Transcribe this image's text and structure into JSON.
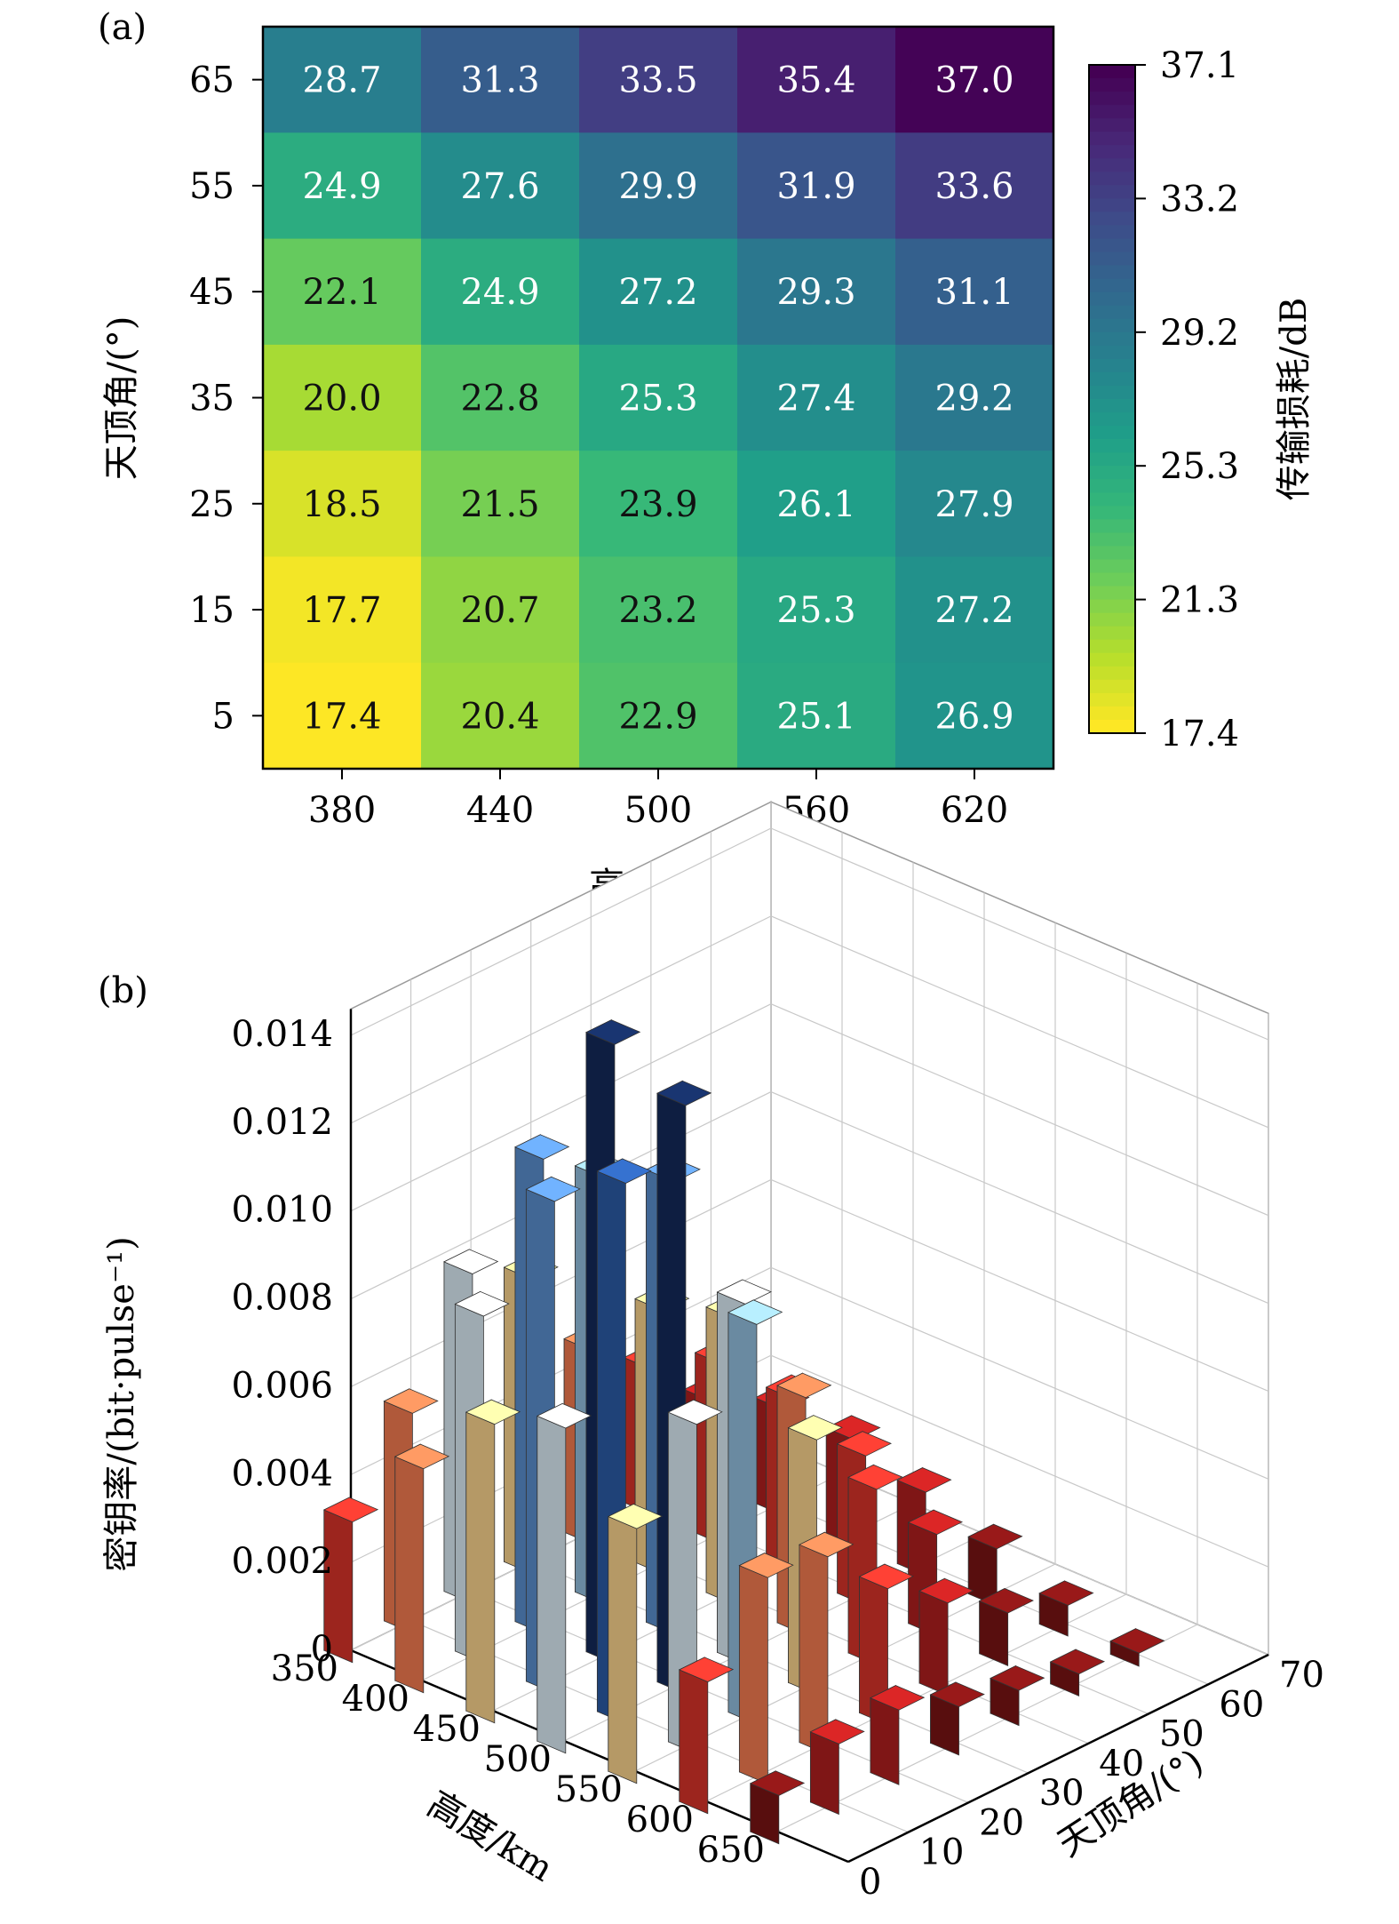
{
  "chart_data": [
    {
      "type": "heatmap",
      "panel_label": "(a)",
      "xlabel": "高度/km",
      "ylabel": "天顶角/(°)",
      "x_ticks": [
        "380",
        "440",
        "500",
        "560",
        "620"
      ],
      "y_ticks": [
        "65",
        "55",
        "45",
        "35",
        "25",
        "15",
        "5"
      ],
      "values": [
        [
          28.7,
          31.3,
          33.5,
          35.4,
          37.0
        ],
        [
          24.9,
          27.6,
          29.9,
          31.9,
          33.6
        ],
        [
          22.1,
          24.9,
          27.2,
          29.3,
          31.1
        ],
        [
          20.0,
          22.8,
          25.3,
          27.4,
          29.2
        ],
        [
          18.5,
          21.5,
          23.9,
          26.1,
          27.9
        ],
        [
          17.7,
          20.7,
          23.2,
          25.3,
          27.2
        ],
        [
          17.4,
          20.4,
          22.9,
          25.1,
          26.9
        ]
      ],
      "value_labels": [
        [
          "28.7",
          "31.3",
          "33.5",
          "35.4",
          "37.0"
        ],
        [
          "24.9",
          "27.6",
          "29.9",
          "31.9",
          "33.6"
        ],
        [
          "22.1",
          "24.9",
          "27.2",
          "29.3",
          "31.1"
        ],
        [
          "20.0",
          "22.8",
          "25.3",
          "27.4",
          "29.2"
        ],
        [
          "18.5",
          "21.5",
          "23.9",
          "26.1",
          "27.9"
        ],
        [
          "17.7",
          "20.7",
          "23.2",
          "25.3",
          "27.2"
        ],
        [
          "17.4",
          "20.4",
          "22.9",
          "25.1",
          "26.9"
        ]
      ],
      "colorbar": {
        "label": "传输损耗/dB",
        "min": 17.4,
        "max": 37.1,
        "ticks": [
          "37.1",
          "33.2",
          "29.2",
          "25.3",
          "21.3",
          "17.4"
        ],
        "colormap": "viridis"
      }
    },
    {
      "type": "bar3d",
      "panel_label": "(b)",
      "zlabel": "密钥率/(bit·pulse⁻¹)",
      "xlabel": "高度/km",
      "ylabel": "天顶角/(°)",
      "x_ticks": [
        "350",
        "400",
        "450",
        "500",
        "550",
        "600",
        "650"
      ],
      "y_ticks": [
        "0",
        "10",
        "20",
        "30",
        "40",
        "50",
        "60",
        "70"
      ],
      "z_ticks": [
        "0",
        "0.002",
        "0.004",
        "0.006",
        "0.008",
        "0.010",
        "0.012",
        "0.014"
      ],
      "zlim": [
        0,
        0.014
      ],
      "heights": "x 350–650 km step 50; y 0–60° step 10",
      "x": [
        350,
        400,
        450,
        500,
        550,
        600,
        650
      ],
      "y": [
        0,
        10,
        20,
        30,
        40,
        50,
        60
      ],
      "values": [
        [
          0.0032,
          0.0051,
          0.0068,
          0.0074,
          0.0058,
          0.003,
          0.0011
        ],
        [
          0.005,
          0.0079,
          0.0112,
          0.0123,
          0.0075,
          0.0047,
          0.0016
        ],
        [
          0.0075,
          0.0108,
          0.0141,
          0.0134,
          0.0091,
          0.0045,
          0.0017
        ],
        [
          0.0067,
          0.0097,
          0.0103,
          0.0082,
          0.0058,
          0.0031,
          0.0011
        ],
        [
          0.0044,
          0.006,
          0.0065,
          0.0054,
          0.004,
          0.0021,
          0.0008
        ],
        [
          0.0033,
          0.0041,
          0.004,
          0.0034,
          0.0023,
          0.0012,
          0.0005
        ],
        [
          0.0019,
          0.0024,
          0.0024,
          0.0019,
          0.0013,
          0.0007,
          0.0003
        ]
      ]
    }
  ]
}
